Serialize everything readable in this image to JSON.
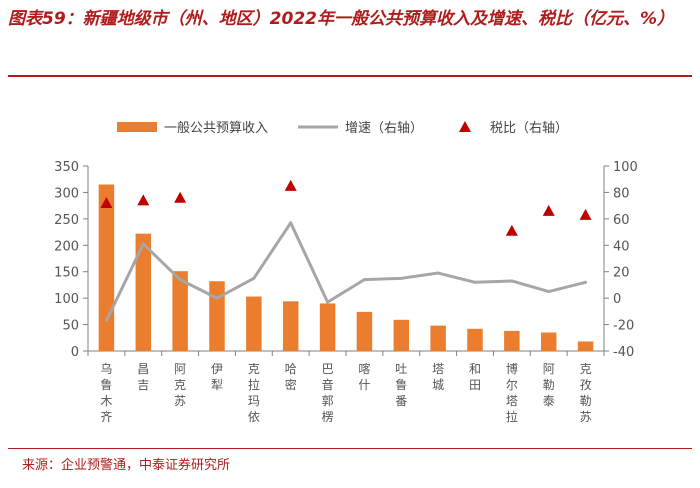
{
  "header": {
    "title": "图表59：新疆地级市（州、地区）2022年一般公共预算收入及增速、税比（亿元、%）"
  },
  "footer": {
    "source": "来源：企业预警通，中泰证券研究所"
  },
  "chart_data": {
    "type": "bar",
    "categories": [
      "乌鲁木齐",
      "昌吉",
      "阿克苏",
      "伊犁",
      "克拉玛依",
      "哈密",
      "巴音郭楞",
      "喀什",
      "吐鲁番",
      "塔城",
      "和田",
      "博尔塔拉",
      "阿勒泰",
      "克孜勒苏"
    ],
    "series": [
      {
        "name": "一般公共预算收入",
        "kind": "bar",
        "axis": "left",
        "values": [
          315,
          222,
          151,
          132,
          103,
          94,
          90,
          74,
          59,
          48,
          42,
          38,
          35,
          18
        ]
      },
      {
        "name": "增速（右轴）",
        "kind": "line",
        "axis": "right",
        "values": [
          -17,
          41,
          14,
          0,
          15,
          57,
          -3,
          14,
          15,
          19,
          12,
          13,
          5,
          12
        ]
      },
      {
        "name": "税比（右轴）",
        "kind": "scatter",
        "axis": "right",
        "values": [
          72,
          74,
          76,
          null,
          null,
          85,
          null,
          null,
          null,
          null,
          null,
          51,
          66,
          63
        ]
      }
    ],
    "yleft": {
      "min": 0,
      "max": 350,
      "ticks": [
        0,
        50,
        100,
        150,
        200,
        250,
        300,
        350
      ]
    },
    "yright": {
      "min": -40,
      "max": 100,
      "ticks": [
        -40,
        -20,
        0,
        20,
        40,
        60,
        80,
        100
      ]
    },
    "legend_position": "top",
    "colors": {
      "bar": "#ea7d2e",
      "line": "#a6a6a6",
      "marker": "#c00000",
      "axis": "#808080"
    }
  }
}
